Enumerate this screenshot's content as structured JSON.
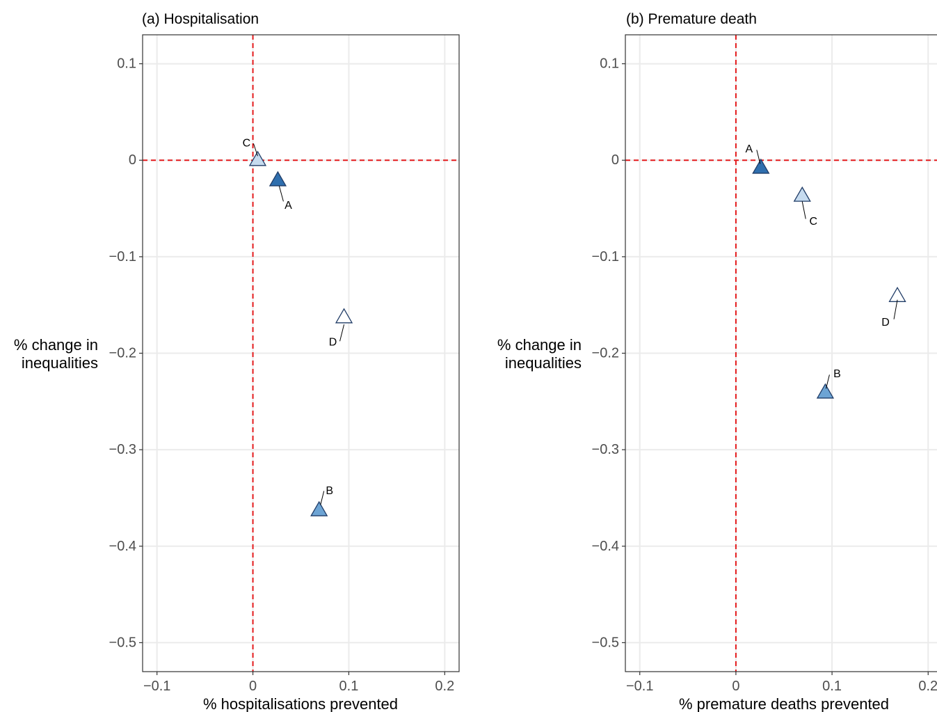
{
  "chart_data": [
    {
      "type": "scatter",
      "title": "(a) Hospitalisation",
      "xlabel": "% hospitalisations prevented",
      "ylabel": [
        "% change in",
        "inequalities"
      ],
      "xlim": [
        -0.115,
        0.215
      ],
      "ylim": [
        -0.53,
        0.13
      ],
      "x_ticks": [
        -0.1,
        0,
        0.1,
        0.2
      ],
      "x_tick_labels": [
        "−0.1",
        "0",
        "0.1",
        "0.2"
      ],
      "y_ticks": [
        0.1,
        0,
        -0.1,
        -0.2,
        -0.3,
        -0.4,
        -0.5
      ],
      "y_tick_labels": [
        "0.1",
        "0",
        "−0.1",
        "−0.2",
        "−0.3",
        "−0.4",
        "−0.5"
      ],
      "grid": true,
      "reference_lines": {
        "x": 0,
        "y": 0,
        "color": "#e41a1c",
        "style": "dashed"
      },
      "points": [
        {
          "label": "A",
          "x": 0.026,
          "y": -0.021,
          "fill": "#2f6fae"
        },
        {
          "label": "B",
          "x": 0.069,
          "y": -0.363,
          "fill": "#6da4d4"
        },
        {
          "label": "C",
          "x": 0.005,
          "y": 0.0,
          "fill": "#c6dbef"
        },
        {
          "label": "D",
          "x": 0.095,
          "y": -0.163,
          "fill": "#ffffff"
        }
      ]
    },
    {
      "type": "scatter",
      "title": "(b) Premature death",
      "xlabel": "% premature deaths prevented",
      "ylabel": [
        "% change in",
        "inequalities"
      ],
      "xlim": [
        -0.115,
        0.215
      ],
      "ylim": [
        -0.53,
        0.13
      ],
      "x_ticks": [
        -0.1,
        0,
        0.1,
        0.2
      ],
      "x_tick_labels": [
        "−0.1",
        "0",
        "0.1",
        "0.2"
      ],
      "y_ticks": [
        0.1,
        0,
        -0.1,
        -0.2,
        -0.3,
        -0.4,
        -0.5
      ],
      "y_tick_labels": [
        "0.1",
        "0",
        "−0.1",
        "−0.2",
        "−0.3",
        "−0.4",
        "−0.5"
      ],
      "grid": true,
      "reference_lines": {
        "x": 0,
        "y": 0,
        "color": "#e41a1c",
        "style": "dashed"
      },
      "points": [
        {
          "label": "A",
          "x": 0.026,
          "y": -0.008,
          "fill": "#2f6fae"
        },
        {
          "label": "B",
          "x": 0.093,
          "y": -0.241,
          "fill": "#6da4d4"
        },
        {
          "label": "C",
          "x": 0.069,
          "y": -0.037,
          "fill": "#c6dbef"
        },
        {
          "label": "D",
          "x": 0.168,
          "y": -0.141,
          "fill": "#ffffff"
        }
      ]
    }
  ]
}
